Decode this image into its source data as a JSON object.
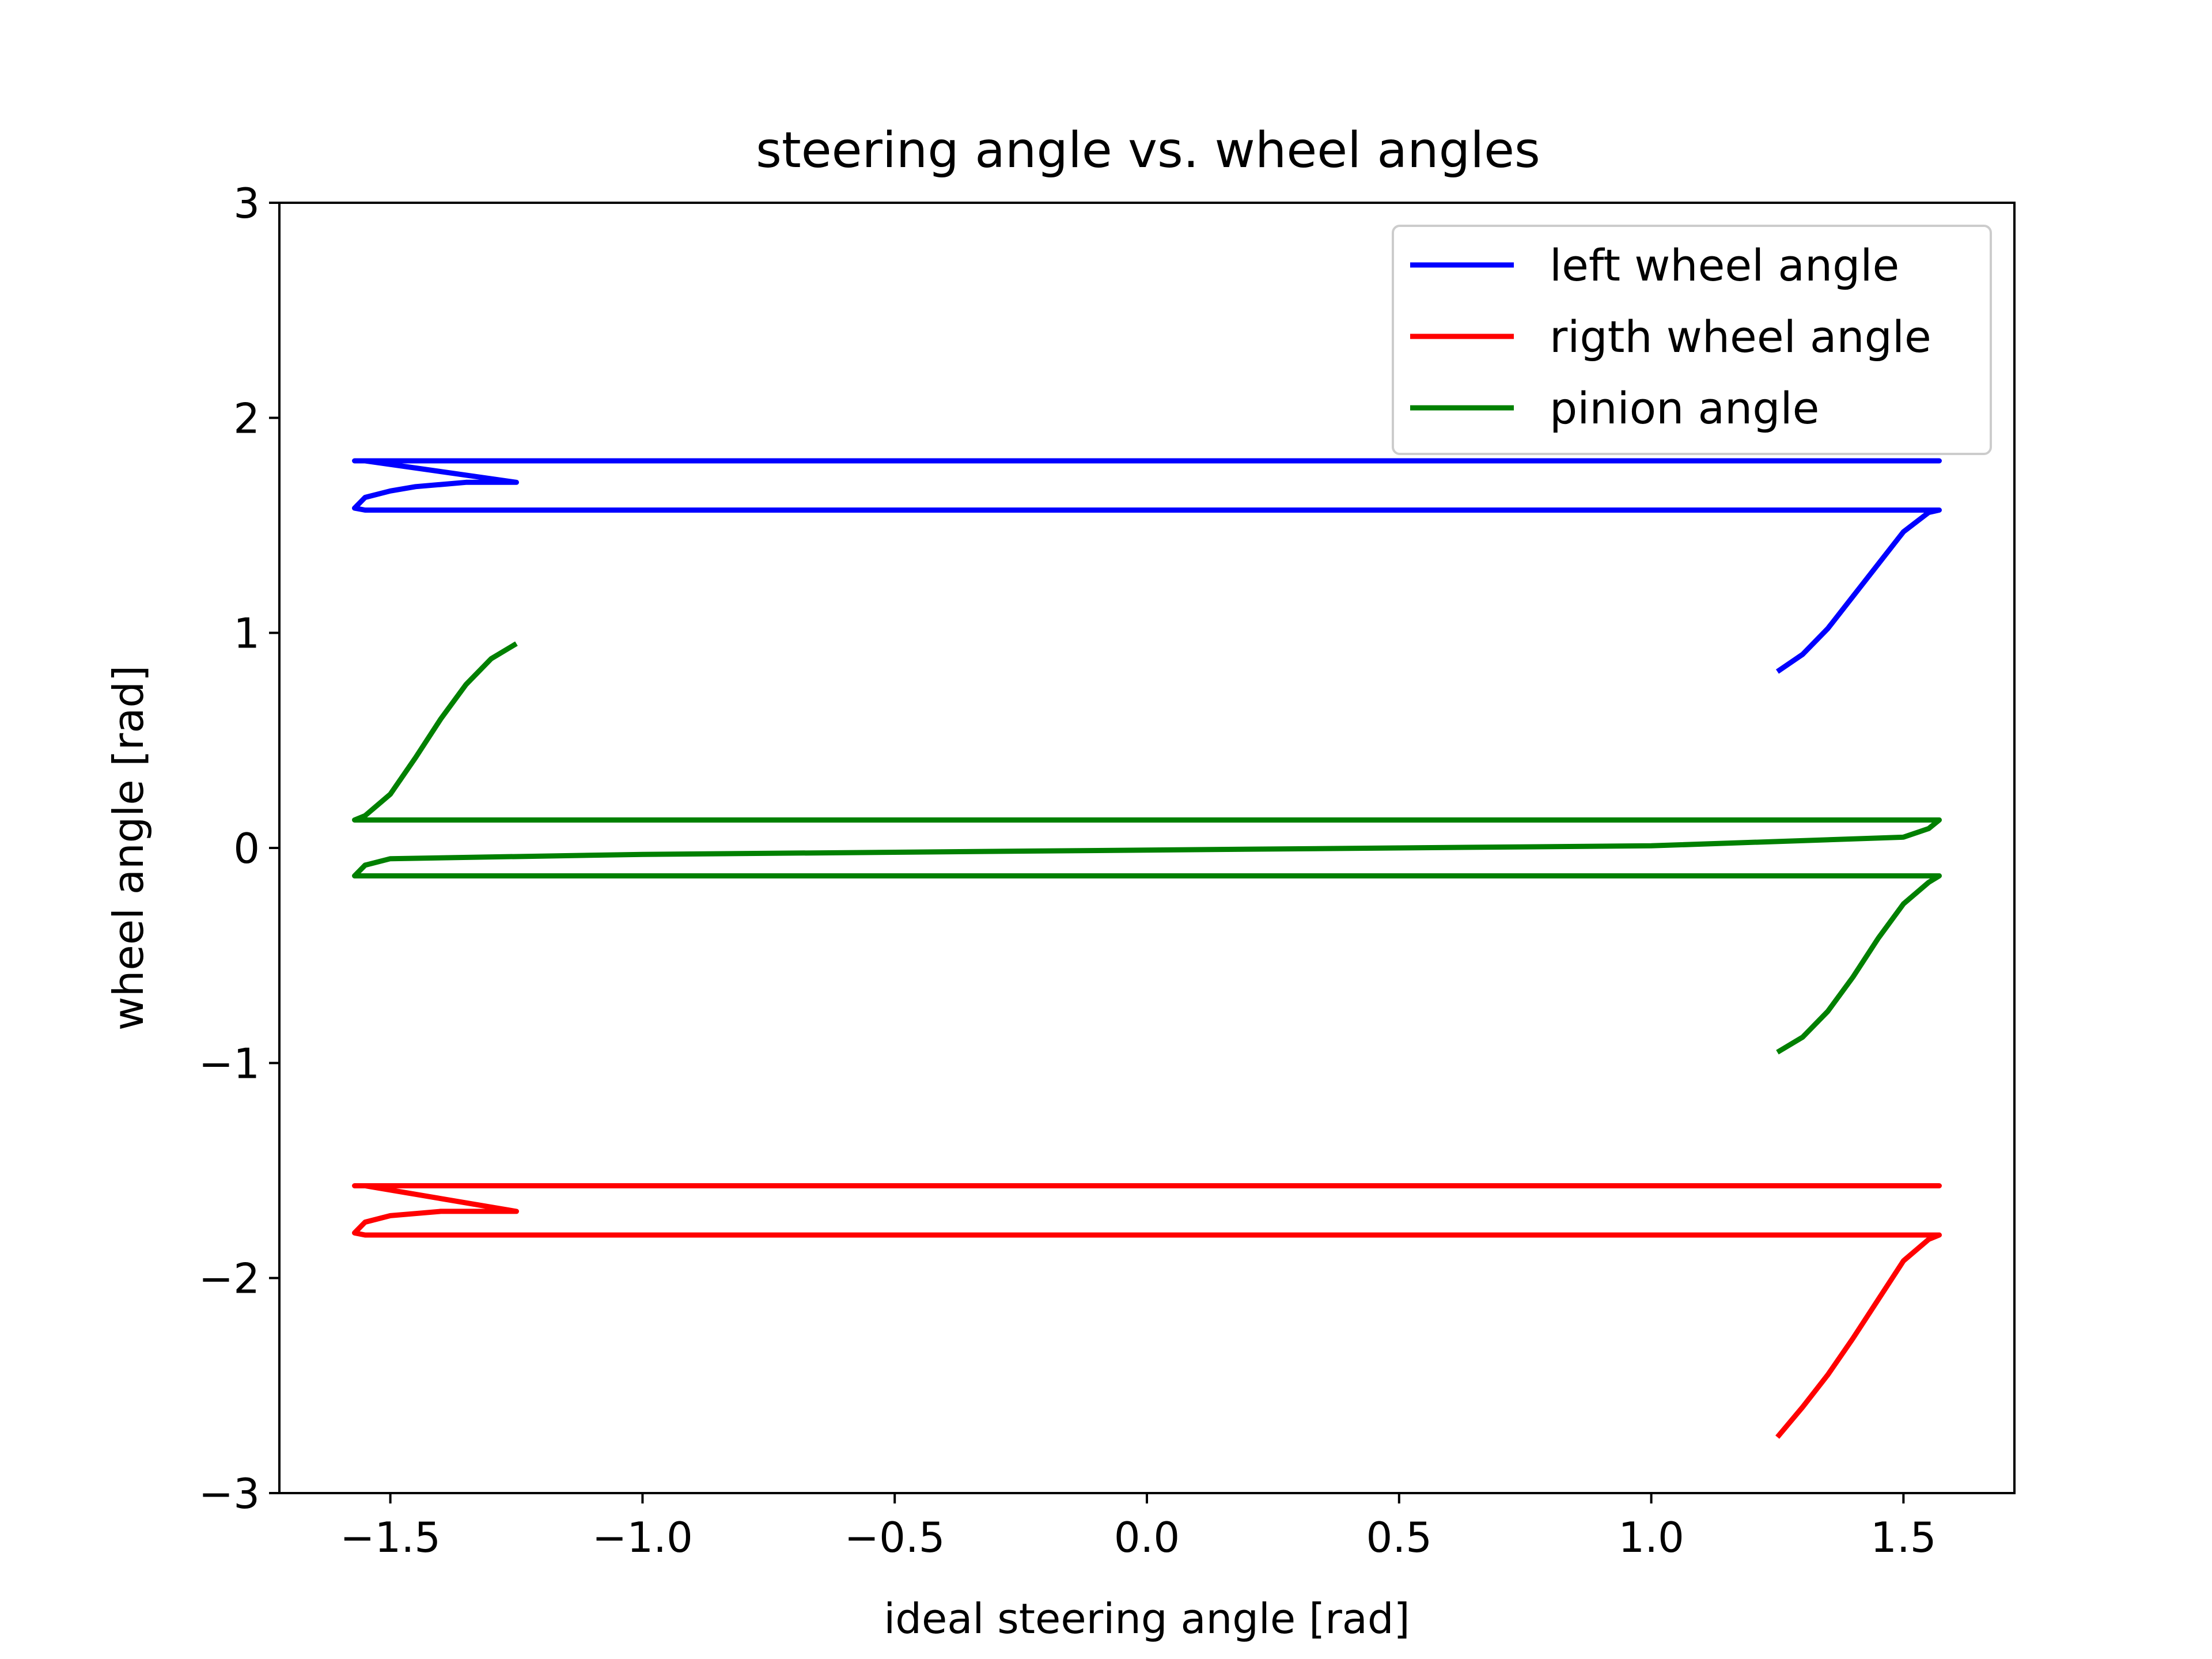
{
  "chart_data": {
    "type": "line",
    "title": "steering angle vs. wheel angles",
    "xlabel": "ideal steering angle [rad]",
    "ylabel": "wheel angle [rad]",
    "xlim": [
      -1.72,
      1.72
    ],
    "ylim": [
      -3,
      3
    ],
    "xticks": [
      -1.5,
      -1.0,
      -0.5,
      0.0,
      0.5,
      1.0,
      1.5
    ],
    "xtick_labels": [
      "−1.5",
      "−1.0",
      "−0.5",
      "0.0",
      "0.5",
      "1.0",
      "1.5"
    ],
    "yticks": [
      -3,
      -2,
      -1,
      0,
      1,
      2,
      3
    ],
    "ytick_labels": [
      "−3",
      "−2",
      "−1",
      "0",
      "1",
      "2",
      "3"
    ],
    "grid": false,
    "legend_position": "top-right",
    "series": [
      {
        "name": "left wheel angle",
        "color": "#0000ff",
        "x": [
          1.25,
          1.3,
          1.35,
          1.4,
          1.45,
          1.5,
          1.55,
          1.571,
          1.0,
          0.5,
          0.0,
          -0.5,
          -1.0,
          -1.5,
          -1.55,
          -1.571,
          -1.55,
          -1.5,
          -1.45,
          -1.4,
          -1.35,
          -1.3,
          -1.25,
          -1.55,
          -1.571,
          -1.5,
          -1.0,
          0.0,
          1.0,
          1.5,
          1.55,
          1.571,
          1.55,
          1.5,
          1.45,
          1.4,
          1.35,
          1.3,
          1.25
        ],
        "y": [
          0.82,
          0.9,
          1.02,
          1.17,
          1.32,
          1.47,
          1.56,
          1.571,
          1.571,
          1.571,
          1.571,
          1.571,
          1.571,
          1.571,
          1.571,
          1.58,
          1.63,
          1.66,
          1.68,
          1.69,
          1.7,
          1.7,
          1.7,
          1.8,
          1.8,
          1.8,
          1.8,
          1.8,
          1.8,
          1.8,
          1.8,
          1.8,
          1.8,
          1.8,
          1.8,
          1.8,
          1.8,
          1.8,
          1.8
        ]
      },
      {
        "name": "rigth wheel angle",
        "color": "#ff0000",
        "x": [
          1.25,
          1.3,
          1.35,
          1.4,
          1.45,
          1.5,
          1.55,
          1.571,
          1.0,
          0.5,
          0.0,
          -0.5,
          -1.0,
          -1.5,
          -1.55,
          -1.571,
          -1.55,
          -1.5,
          -1.45,
          -1.4,
          -1.35,
          -1.3,
          -1.25,
          -1.55,
          -1.571,
          -1.5,
          -1.0,
          0.0,
          1.0,
          1.5,
          1.55,
          1.571,
          1.55,
          1.5,
          1.45,
          1.4,
          1.35,
          1.3,
          1.25
        ],
        "y": [
          -2.74,
          -2.6,
          -2.45,
          -2.28,
          -2.1,
          -1.92,
          -1.82,
          -1.8,
          -1.8,
          -1.8,
          -1.8,
          -1.8,
          -1.8,
          -1.8,
          -1.8,
          -1.79,
          -1.74,
          -1.71,
          -1.7,
          -1.69,
          -1.69,
          -1.69,
          -1.69,
          -1.571,
          -1.571,
          -1.571,
          -1.571,
          -1.571,
          -1.571,
          -1.571,
          -1.571,
          -1.571,
          -1.571,
          -1.571,
          -1.571,
          -1.571,
          -1.571,
          -1.571,
          -1.571
        ]
      },
      {
        "name": "pinion angle",
        "color": "#008000",
        "x": [
          1.25,
          1.3,
          1.35,
          1.4,
          1.45,
          1.5,
          1.55,
          1.571,
          1.0,
          0.5,
          0.0,
          -0.5,
          -1.0,
          -1.5,
          -1.55,
          -1.571,
          -1.55,
          -1.5,
          -1.0,
          -0.5,
          0.0,
          0.5,
          1.0,
          1.5,
          1.55,
          1.571,
          1.55,
          1.5,
          -1.5,
          -1.55,
          -1.571,
          -1.55,
          -1.5,
          -1.45,
          -1.4,
          -1.35,
          -1.3,
          -1.25
        ],
        "y": [
          -0.95,
          -0.88,
          -0.76,
          -0.6,
          -0.42,
          -0.26,
          -0.16,
          -0.13,
          -0.13,
          -0.13,
          -0.13,
          -0.13,
          -0.13,
          -0.13,
          -0.13,
          -0.13,
          -0.08,
          -0.05,
          -0.03,
          -0.02,
          -0.01,
          0.0,
          0.01,
          0.05,
          0.09,
          0.13,
          0.13,
          0.13,
          0.13,
          0.13,
          0.13,
          0.15,
          0.25,
          0.42,
          0.6,
          0.76,
          0.88,
          0.95
        ]
      }
    ]
  }
}
